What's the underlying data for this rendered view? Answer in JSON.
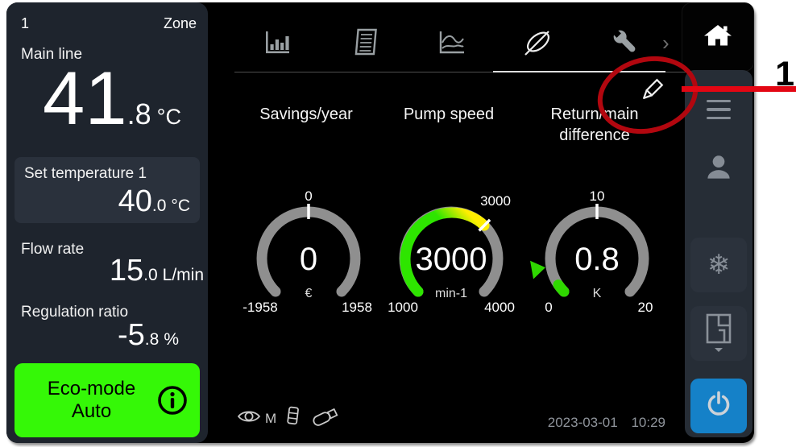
{
  "annotation": {
    "number": "1"
  },
  "left_panel": {
    "zone_number": "1",
    "zone_label": "Zone",
    "main_line": {
      "label": "Main line",
      "value_int": "41",
      "value_frac": ".8",
      "unit": "°C"
    },
    "set_temperature": {
      "label": "Set temperature 1",
      "value_int": "40",
      "value_frac": ".0",
      "unit": "°C"
    },
    "flow_rate": {
      "label": "Flow rate",
      "value_int": "15",
      "value_frac": ".0",
      "unit": "L/min"
    },
    "regulation_ratio": {
      "label": "Regulation ratio",
      "value_int": "-5",
      "value_frac": ".8",
      "unit": "%"
    },
    "eco_mode": {
      "label": "Eco-mode Auto",
      "info_icon": "info-icon"
    }
  },
  "tab_bar": {
    "tabs": [
      {
        "icon": "bar-chart-icon",
        "active": false
      },
      {
        "icon": "document-icon",
        "active": false
      },
      {
        "icon": "trend-icon",
        "active": false
      },
      {
        "icon": "leaf-icon",
        "active": true
      },
      {
        "icon": "wrench-icon",
        "active": false
      }
    ],
    "more_icon": "chevron-right-icon",
    "edit_icon": "pencil-icon"
  },
  "chart_data": [
    {
      "type": "gauge",
      "title": "Savings/year",
      "min": -1958,
      "max": 1958,
      "value": 0,
      "display_value": "0",
      "unit": "€",
      "tick_value": 0,
      "tick_label": "0",
      "tick_label_dx": 0,
      "tick_label_dy": -72,
      "min_label": "-1958",
      "max_label": "1958",
      "arc_color": "#8f8f8f"
    },
    {
      "type": "gauge",
      "title": "Pump speed",
      "min": 1000,
      "max": 4000,
      "value": 3000,
      "display_value": "3000",
      "unit": "min-1",
      "tick_value": 3000,
      "tick_label": "3000",
      "tick_label_dx": 55,
      "tick_label_dy": -66,
      "min_label": "1000",
      "max_label": "4000",
      "arc_color": "#8f8f8f",
      "fill_color": "#2ee500",
      "fill_tip_color": "#ffee00"
    },
    {
      "type": "gauge",
      "title": "Return/main difference",
      "min": 0,
      "max": 20,
      "value": 0.8,
      "display_value": "0.8",
      "unit": "K",
      "tick_value": 10,
      "tick_label": "10",
      "tick_label_dx": 0,
      "tick_label_dy": -72,
      "min_label": "0",
      "max_label": "20",
      "arc_color": "#8f8f8f",
      "fill_color": "#2fd800",
      "pointer_value": 2.6,
      "pointer_color": "#2fd800"
    }
  ],
  "status_bar": {
    "icons": [
      "monitoring-eye-icon",
      "sd-card-icon",
      "usb-drive-icon"
    ],
    "monitor_letter": "M",
    "date": "2023-03-01",
    "time": "10:29"
  },
  "nav_sidebar": {
    "buttons": [
      "home-icon",
      "menu-icon",
      "user-icon",
      "snowflake-icon",
      "zones-icon",
      "power-icon"
    ],
    "snowflake_glyph": "❄",
    "power_color": "#1581c8"
  },
  "colors": {
    "eco_green": "#35f807",
    "panel_bg": "#1e242d",
    "card_bg": "#2a313c",
    "annotation_red": "#e30613"
  }
}
